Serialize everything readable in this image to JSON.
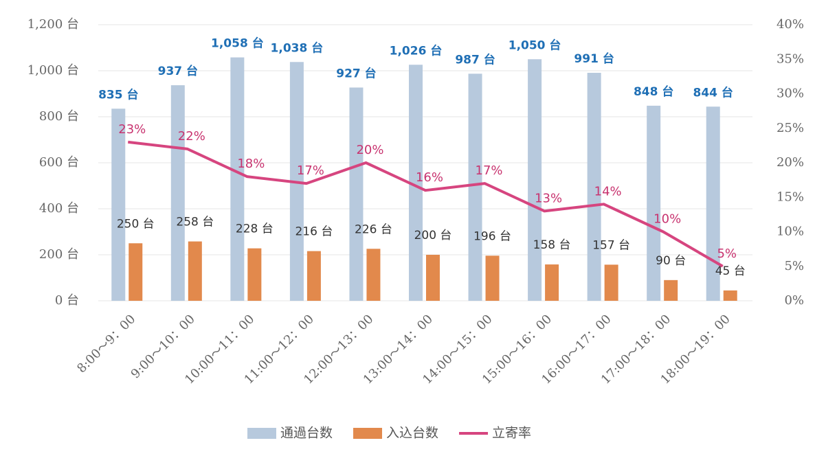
{
  "chart_data": {
    "type": "bar-line",
    "categories": [
      "8:00～9：00",
      "9:00～10：00",
      "10:00～11：00",
      "11:00～12：00",
      "12:00～13：00",
      "13:00～14：00",
      "14:00～15：00",
      "15:00～16：00",
      "16:00～17：00",
      "17:00～18：00",
      "18:00～19：00"
    ],
    "series": [
      {
        "name": "通過台数",
        "type": "bar",
        "color": "#b7c9dd",
        "label_color": "#1f6fb5",
        "values": [
          835,
          937,
          1058,
          1038,
          927,
          1026,
          987,
          1050,
          991,
          848,
          844
        ],
        "value_labels": [
          "835 台",
          "937 台",
          "1,058 台",
          "1,038 台",
          "927 台",
          "1,026 台",
          "987 台",
          "1,050 台",
          "991 台",
          "848 台",
          "844 台"
        ]
      },
      {
        "name": "入込台数",
        "type": "bar",
        "color": "#e2894c",
        "label_color": "#333333",
        "values": [
          250,
          258,
          228,
          216,
          226,
          200,
          196,
          158,
          157,
          90,
          45
        ],
        "value_labels": [
          "250 台",
          "258 台",
          "228 台",
          "216 台",
          "226 台",
          "200 台",
          "196 台",
          "158 台",
          "157 台",
          "90 台",
          "45 台"
        ]
      },
      {
        "name": "立寄率",
        "type": "line",
        "axis": "y2",
        "color": "#d6457f",
        "label_color": "#c8336f",
        "values": [
          23,
          22,
          18,
          17,
          20,
          16,
          17,
          13,
          14,
          10,
          5
        ],
        "value_labels": [
          "23%",
          "22%",
          "18%",
          "17%",
          "20%",
          "16%",
          "17%",
          "13%",
          "14%",
          "10%",
          "5%"
        ]
      }
    ],
    "ylim": [
      0,
      1200
    ],
    "yticks": [
      {
        "value": 0,
        "label": "0 台"
      },
      {
        "value": 200,
        "label": "200 台"
      },
      {
        "value": 400,
        "label": "400 台"
      },
      {
        "value": 600,
        "label": "600 台"
      },
      {
        "value": 800,
        "label": "800 台"
      },
      {
        "value": 1000,
        "label": "1,000 台"
      },
      {
        "value": 1200,
        "label": "1,200 台"
      }
    ],
    "y2lim": [
      0,
      40
    ],
    "y2ticks": [
      {
        "value": 0,
        "label": "0%"
      },
      {
        "value": 5,
        "label": "5%"
      },
      {
        "value": 10,
        "label": "10%"
      },
      {
        "value": 15,
        "label": "15%"
      },
      {
        "value": 20,
        "label": "20%"
      },
      {
        "value": 25,
        "label": "25%"
      },
      {
        "value": 30,
        "label": "30%"
      },
      {
        "value": 35,
        "label": "35%"
      },
      {
        "value": 40,
        "label": "40%"
      }
    ],
    "grid": true,
    "legend": "bottom"
  }
}
